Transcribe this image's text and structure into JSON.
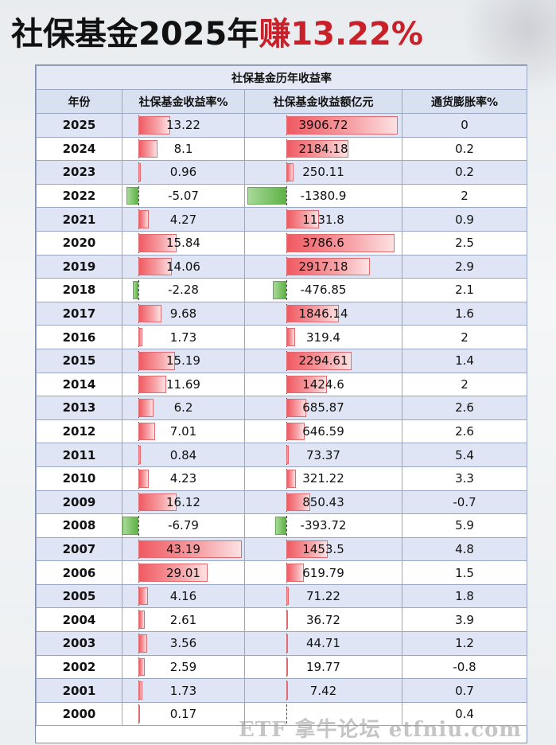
{
  "title": {
    "part1": "社保基金2025年",
    "part2": "赚13.22%"
  },
  "table": {
    "caption": "社保基金历年收益率",
    "headers": [
      "年份",
      "社保基金收益率%",
      "社保基金收益额亿元",
      "通货膨胀率%"
    ],
    "rows": [
      {
        "year": "2025",
        "rate": "13.22",
        "amount": "3906.72",
        "inflation": "0"
      },
      {
        "year": "2024",
        "rate": "8.1",
        "amount": "2184.18",
        "inflation": "0.2"
      },
      {
        "year": "2023",
        "rate": "0.96",
        "amount": "250.11",
        "inflation": "0.2"
      },
      {
        "year": "2022",
        "rate": "-5.07",
        "amount": "-1380.9",
        "inflation": "2"
      },
      {
        "year": "2021",
        "rate": "4.27",
        "amount": "1131.8",
        "inflation": "0.9"
      },
      {
        "year": "2020",
        "rate": "15.84",
        "amount": "3786.6",
        "inflation": "2.5"
      },
      {
        "year": "2019",
        "rate": "14.06",
        "amount": "2917.18",
        "inflation": "2.9"
      },
      {
        "year": "2018",
        "rate": "-2.28",
        "amount": "-476.85",
        "inflation": "2.1"
      },
      {
        "year": "2017",
        "rate": "9.68",
        "amount": "1846.14",
        "inflation": "1.6"
      },
      {
        "year": "2016",
        "rate": "1.73",
        "amount": "319.4",
        "inflation": "2"
      },
      {
        "year": "2015",
        "rate": "15.19",
        "amount": "2294.61",
        "inflation": "1.4"
      },
      {
        "year": "2014",
        "rate": "11.69",
        "amount": "1424.6",
        "inflation": "2"
      },
      {
        "year": "2013",
        "rate": "6.2",
        "amount": "685.87",
        "inflation": "2.6"
      },
      {
        "year": "2012",
        "rate": "7.01",
        "amount": "646.59",
        "inflation": "2.6"
      },
      {
        "year": "2011",
        "rate": "0.84",
        "amount": "73.37",
        "inflation": "5.4"
      },
      {
        "year": "2010",
        "rate": "4.23",
        "amount": "321.22",
        "inflation": "3.3"
      },
      {
        "year": "2009",
        "rate": "16.12",
        "amount": "850.43",
        "inflation": "-0.7"
      },
      {
        "year": "2008",
        "rate": "-6.79",
        "amount": "-393.72",
        "inflation": "5.9"
      },
      {
        "year": "2007",
        "rate": "43.19",
        "amount": "1453.5",
        "inflation": "4.8"
      },
      {
        "year": "2006",
        "rate": "29.01",
        "amount": "619.79",
        "inflation": "1.5"
      },
      {
        "year": "2005",
        "rate": "4.16",
        "amount": "71.22",
        "inflation": "1.8"
      },
      {
        "year": "2004",
        "rate": "2.61",
        "amount": "36.72",
        "inflation": "3.9"
      },
      {
        "year": "2003",
        "rate": "3.56",
        "amount": "44.71",
        "inflation": "1.2"
      },
      {
        "year": "2002",
        "rate": "2.59",
        "amount": "19.77",
        "inflation": "-0.8"
      },
      {
        "year": "2001",
        "rate": "1.73",
        "amount": "7.42",
        "inflation": "0.7"
      },
      {
        "year": "2000",
        "rate": "0.17",
        "amount": "",
        "inflation": "0.4"
      }
    ]
  },
  "watermark": "ETF 拿牛论坛 etfniu.com",
  "colors": {
    "title_red": "#c9202a",
    "positive_bar": "#f05a62",
    "negative_bar": "#5fb246",
    "stripe": "#dfe5f4"
  }
}
